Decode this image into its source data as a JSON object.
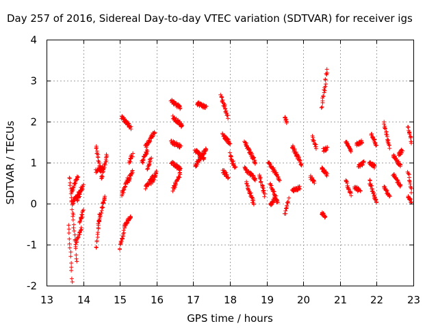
{
  "chart_data": {
    "type": "scatter",
    "title": "Day 257 of 2016, Sidereal Day-to-day VTEC variation (SDTVAR) for receiver igs",
    "xlabel": "GPS time / hours",
    "ylabel": "SDTVAR / TECUs",
    "xlim": [
      13,
      23
    ],
    "ylim": [
      -2,
      4
    ],
    "xticks": [
      "13",
      "14",
      "15",
      "16",
      "17",
      "18",
      "19",
      "20",
      "21",
      "22",
      "23"
    ],
    "yticks": [
      "-2",
      "-1",
      "0",
      "1",
      "2",
      "3",
      "4"
    ],
    "grid": true,
    "marker": "+",
    "color": "#ff0000",
    "series": [
      {
        "name": "SDTVAR",
        "segments": [
          [
            13.62,
            13.72,
            0.65,
            -0.3
          ],
          [
            13.72,
            13.82,
            -0.3,
            -1.4
          ],
          [
            13.68,
            13.85,
            0.3,
            0.65
          ],
          [
            13.8,
            13.95,
            -1.0,
            -0.6
          ],
          [
            13.6,
            13.7,
            -0.5,
            -1.9
          ],
          [
            13.85,
            14.0,
            0.1,
            0.45
          ],
          [
            13.9,
            14.0,
            -0.45,
            -0.2
          ],
          [
            13.7,
            13.95,
            0.0,
            0.35
          ],
          [
            14.35,
            14.45,
            -1.1,
            -0.3
          ],
          [
            14.4,
            14.6,
            -0.5,
            0.2
          ],
          [
            14.35,
            14.5,
            1.4,
            0.7
          ],
          [
            14.5,
            14.65,
            0.6,
            1.2
          ],
          [
            14.35,
            14.55,
            0.8,
            0.9
          ],
          [
            15.0,
            15.15,
            -1.1,
            -0.5
          ],
          [
            15.05,
            15.2,
            0.2,
            0.6
          ],
          [
            15.05,
            15.3,
            2.1,
            1.85
          ],
          [
            15.15,
            15.3,
            -0.5,
            -0.3
          ],
          [
            15.2,
            15.35,
            0.5,
            0.8
          ],
          [
            15.25,
            15.35,
            1.0,
            1.2
          ],
          [
            15.7,
            15.95,
            1.4,
            1.75
          ],
          [
            15.7,
            15.9,
            0.4,
            0.65
          ],
          [
            15.75,
            15.85,
            0.85,
            1.1
          ],
          [
            15.85,
            16.0,
            0.5,
            0.75
          ],
          [
            15.6,
            15.75,
            1.0,
            1.3
          ],
          [
            16.4,
            16.65,
            2.5,
            2.35
          ],
          [
            16.4,
            16.65,
            1.5,
            1.4
          ],
          [
            16.4,
            16.65,
            1.0,
            0.85
          ],
          [
            16.45,
            16.7,
            2.1,
            1.9
          ],
          [
            16.45,
            16.65,
            0.35,
            0.75
          ],
          [
            17.05,
            17.35,
            0.9,
            1.35
          ],
          [
            17.1,
            17.35,
            2.45,
            2.35
          ],
          [
            17.05,
            17.3,
            1.3,
            1.1
          ],
          [
            17.75,
            17.95,
            2.65,
            2.1
          ],
          [
            17.8,
            18.0,
            1.7,
            1.45
          ],
          [
            17.8,
            17.95,
            0.8,
            0.65
          ],
          [
            18.0,
            18.15,
            1.2,
            0.85
          ],
          [
            18.4,
            18.7,
            1.5,
            1.0
          ],
          [
            18.45,
            18.65,
            0.5,
            0.0
          ],
          [
            18.4,
            18.7,
            0.85,
            0.6
          ],
          [
            18.8,
            18.95,
            0.7,
            0.2
          ],
          [
            19.05,
            19.35,
            1.0,
            0.6
          ],
          [
            19.1,
            19.3,
            0.5,
            0.0
          ],
          [
            19.1,
            19.25,
            -0.05,
            0.15
          ],
          [
            19.5,
            19.55,
            2.1,
            1.95
          ],
          [
            19.5,
            19.6,
            -0.25,
            0.1
          ],
          [
            19.7,
            19.95,
            1.4,
            0.95
          ],
          [
            19.7,
            19.9,
            0.3,
            0.4
          ],
          [
            20.25,
            20.35,
            1.65,
            1.35
          ],
          [
            20.2,
            20.3,
            0.65,
            0.5
          ],
          [
            20.5,
            20.65,
            2.35,
            3.25
          ],
          [
            20.55,
            20.65,
            1.3,
            1.35
          ],
          [
            20.5,
            20.65,
            0.85,
            0.7
          ],
          [
            20.5,
            20.6,
            -0.25,
            -0.3
          ],
          [
            21.15,
            21.3,
            1.5,
            1.3
          ],
          [
            21.15,
            21.3,
            0.6,
            0.2
          ],
          [
            21.45,
            21.6,
            1.45,
            1.5
          ],
          [
            21.5,
            21.65,
            0.9,
            1.0
          ],
          [
            21.4,
            21.55,
            0.4,
            0.3
          ],
          [
            21.85,
            22.0,
            1.7,
            1.4
          ],
          [
            21.8,
            21.95,
            1.0,
            0.9
          ],
          [
            21.8,
            22.0,
            0.55,
            0.0
          ],
          [
            22.2,
            22.35,
            1.95,
            1.35
          ],
          [
            22.2,
            22.35,
            0.4,
            0.2
          ],
          [
            22.45,
            22.65,
            1.2,
            0.9
          ],
          [
            22.45,
            22.65,
            0.7,
            0.45
          ],
          [
            22.6,
            22.7,
            1.2,
            1.3
          ],
          [
            22.85,
            22.95,
            1.85,
            1.5
          ],
          [
            22.85,
            22.95,
            0.8,
            0.3
          ],
          [
            22.85,
            22.95,
            0.15,
            0.05
          ]
        ]
      }
    ]
  }
}
